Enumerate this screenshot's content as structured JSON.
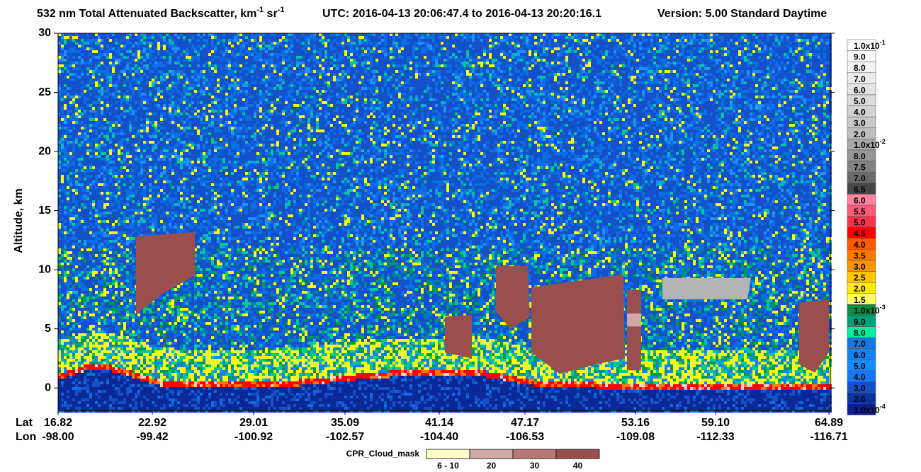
{
  "chart_data": {
    "type": "heatmap",
    "title_parts": [
      {
        "text": "532 nm Total Attenuated Backscatter, km"
      },
      {
        "sup": "-1"
      },
      {
        "text": " sr"
      },
      {
        "sup": "-1"
      }
    ],
    "utc": "UTC:  2016-04-13 20:06:47.4  to  2016-04-13 20:20:16.1",
    "version": "Version: 5.00  Standard  Daytime",
    "y_label": "Altitude, km",
    "ylim": [
      -1.9,
      30
    ],
    "yticks": [
      0,
      5,
      10,
      15,
      20,
      25,
      30
    ],
    "x_row_labels": [
      "Lat",
      "Lon"
    ],
    "lat": [
      "16.82",
      "22.92",
      "29.01",
      "35.09",
      "41.14",
      "47.17",
      "53.16",
      "59.10",
      "64.89"
    ],
    "lon": [
      "-98.00",
      "-99.42",
      "-100.92",
      "-102.57",
      "-104.40",
      "-106.53",
      "-109.08",
      "-112.33",
      "-116.71"
    ],
    "colorbar": {
      "labels": [
        {
          "text": "1.0x10",
          "sup": "-1"
        },
        "9.0",
        "8.0",
        "7.0",
        "6.0",
        "5.0",
        "4.0",
        "3.0",
        "2.0",
        {
          "text": "1.0x10",
          "sup": "-2"
        },
        "8.0",
        "7.5",
        "7.0",
        "6.5",
        "6.0",
        "5.5",
        "5.0",
        "4.5",
        "4.0",
        "3.5",
        "3.0",
        "2.5",
        "2.0",
        "1.5",
        {
          "text": "1.0x10",
          "sup": "-3"
        },
        "9.0",
        "8.0",
        "7.0",
        "6.0",
        "5.0",
        "4.0",
        "3.0",
        "2.0",
        {
          "text": "1.0x10",
          "sup": "-4"
        }
      ],
      "colors": [
        "#ffffff",
        "#fafafa",
        "#f3f3f3",
        "#ececec",
        "#e4e4e4",
        "#dcdcdc",
        "#d2d2d2",
        "#c8c8c8",
        "#bebebe",
        "#a8a8a8",
        "#969696",
        "#828282",
        "#6a6a6a",
        "#464646",
        "#ff82a0",
        "#ff5a78",
        "#ff3250",
        "#ff0000",
        "#ff5a00",
        "#ff7800",
        "#ff9600",
        "#ffc800",
        "#ffeb00",
        "#ffff64",
        "#0a8c46",
        "#00a078",
        "#00f0a0",
        "#1478e6",
        "#1482f0",
        "#148cff",
        "#1478ff",
        "#1450c8",
        "#0a32a0",
        "#0a1e8c"
      ]
    },
    "cloud_mask": {
      "title": "CPR_Cloud_mask",
      "labels": [
        "6 - 10",
        "20",
        "30",
        "40"
      ],
      "colors": [
        "#ffffc8",
        "#d4a8a8",
        "#b87878",
        "#9a4e4e"
      ]
    }
  }
}
